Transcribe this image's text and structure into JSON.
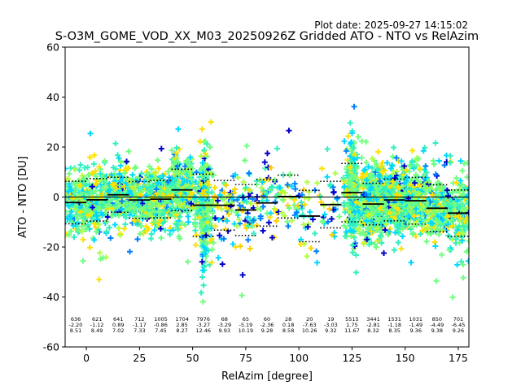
{
  "chart_data": {
    "type": "scatter",
    "plot_date": "Plot date: 2025-09-27 14:15:02",
    "title": "S-O3M_GOME_VOD_XX_M03_20250926Z Gridded ATO - NTO vs RelAzim",
    "xlabel": "RelAzim [degree]",
    "ylabel": "ATO - NTO [DU]",
    "xlim": [
      -10,
      180
    ],
    "ylim": [
      -60,
      60
    ],
    "xticks": [
      0,
      25,
      50,
      75,
      100,
      125,
      150,
      175
    ],
    "yticks": [
      -60,
      -40,
      -20,
      0,
      20,
      40,
      60
    ],
    "bins": [
      {
        "x": -5,
        "n": "636",
        "mean": "-2.20",
        "std": "8.51"
      },
      {
        "x": 5,
        "n": "621",
        "mean": "-1.12",
        "std": "8.49"
      },
      {
        "x": 15,
        "n": "641",
        "mean": "0.89",
        "std": "7.02"
      },
      {
        "x": 25,
        "n": "712",
        "mean": "-1.17",
        "std": "7.33"
      },
      {
        "x": 35,
        "n": "1005",
        "mean": "-0.86",
        "std": "7.45"
      },
      {
        "x": 45,
        "n": "1704",
        "mean": "2.85",
        "std": "8.27"
      },
      {
        "x": 55,
        "n": "7976",
        "mean": "-3.27",
        "std": "12.46"
      },
      {
        "x": 65,
        "n": "68",
        "mean": "-3.29",
        "std": "9.93"
      },
      {
        "x": 75,
        "n": "65",
        "mean": "-5.19",
        "std": "10.19"
      },
      {
        "x": 85,
        "n": "60",
        "mean": "-2.36",
        "std": "9.28"
      },
      {
        "x": 95,
        "n": "28",
        "mean": "0.18",
        "std": "8.58"
      },
      {
        "x": 105,
        "n": "20",
        "mean": "-7.63",
        "std": "10.26"
      },
      {
        "x": 115,
        "n": "19",
        "mean": "-3.03",
        "std": "9.32"
      },
      {
        "x": 125,
        "n": "5515",
        "mean": "1.75",
        "std": "11.67"
      },
      {
        "x": 135,
        "n": "3441",
        "mean": "-2.81",
        "std": "8.32"
      },
      {
        "x": 145,
        "n": "1531",
        "mean": "-1.18",
        "std": "8.35"
      },
      {
        "x": 155,
        "n": "1031",
        "mean": "-1.49",
        "std": "9.36"
      },
      {
        "x": 165,
        "n": "850",
        "mean": "-4.49",
        "std": "9.38"
      },
      {
        "x": 175,
        "n": "701",
        "mean": "-6.45",
        "std": "9.26"
      }
    ],
    "marker": "+",
    "colors": [
      "#0000cd",
      "#0080ff",
      "#00d8ff",
      "#30f0c0",
      "#70ff80",
      "#b0ff40",
      "#ffe000",
      "#ffd000"
    ],
    "zero_line": true,
    "grid": false
  }
}
